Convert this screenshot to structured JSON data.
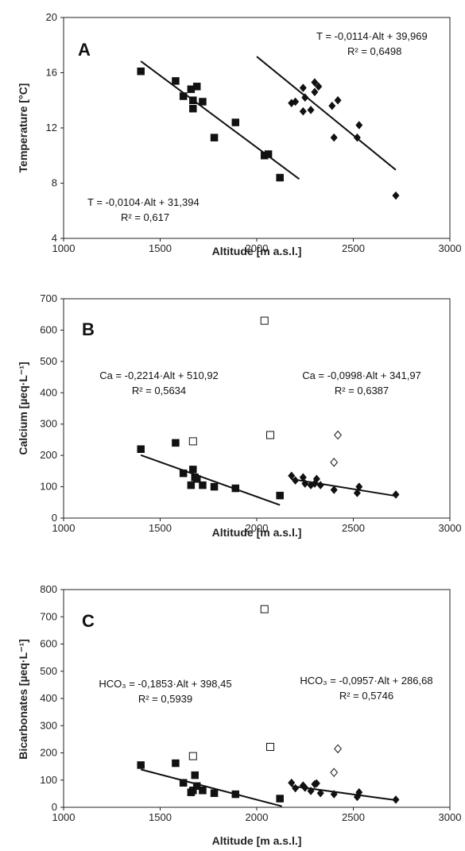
{
  "chart_data": [
    {
      "type": "scatter",
      "panel": "A",
      "xlabel": "Altitude [m a.s.l.]",
      "ylabel": "Temperature [°C]",
      "xlim": [
        1000,
        3000
      ],
      "ylim": [
        4,
        20
      ],
      "xticks": [
        1000,
        1500,
        2000,
        2500,
        3000
      ],
      "yticks": [
        4,
        8,
        12,
        16,
        20
      ],
      "grid": false,
      "series": [
        {
          "marker": "square",
          "x": [
            1400,
            1580,
            1620,
            1660,
            1670,
            1670,
            1690,
            1720,
            1780,
            1890,
            2040,
            2060,
            2120
          ],
          "y": [
            16.1,
            15.4,
            14.3,
            14.8,
            14.0,
            13.4,
            15.0,
            13.9,
            11.3,
            12.4,
            10.0,
            10.1,
            8.4
          ],
          "fit": {
            "x": [
              1400,
              2220
            ],
            "y": [
              16.83,
              8.3
            ]
          }
        },
        {
          "marker": "diamond",
          "x": [
            2180,
            2200,
            2240,
            2240,
            2250,
            2280,
            2300,
            2300,
            2320,
            2390,
            2400,
            2420,
            2520,
            2530,
            2720
          ],
          "y": [
            13.8,
            13.9,
            14.9,
            13.2,
            14.2,
            13.3,
            14.6,
            15.3,
            15.0,
            13.6,
            11.3,
            14.0,
            11.3,
            12.2,
            7.1
          ],
          "fit": {
            "x": [
              2000,
              2720
            ],
            "y": [
              17.17,
              8.96
            ]
          }
        }
      ],
      "annotations": [
        {
          "eq": "T = -0,0114·Alt + 39,969",
          "r2": "R² = 0,6498"
        },
        {
          "eq": "T = -0,0104·Alt + 31,394",
          "r2": "R² = 0,617"
        }
      ]
    },
    {
      "type": "scatter",
      "panel": "B",
      "xlabel": "Altitude [m a.s.l.]",
      "ylabel": "Calcium [µeq·L⁻¹]",
      "xlim": [
        1000,
        3000
      ],
      "ylim": [
        0,
        700
      ],
      "xticks": [
        1000,
        1500,
        2000,
        2500,
        3000
      ],
      "yticks": [
        0,
        100,
        200,
        300,
        400,
        500,
        600,
        700
      ],
      "grid": false,
      "series": [
        {
          "marker": "square",
          "x": [
            1400,
            1580,
            1620,
            1660,
            1670,
            1680,
            1690,
            1720,
            1780,
            1890,
            2120
          ],
          "y": [
            220,
            240,
            143,
            105,
            155,
            130,
            125,
            105,
            100,
            95,
            72
          ],
          "fit": {
            "x": [
              1400,
              2120
            ],
            "y": [
              200.96,
              41.55
            ]
          }
        },
        {
          "marker": "open-square",
          "x": [
            1670,
            2040,
            2070
          ],
          "y": [
            245,
            630,
            265
          ]
        },
        {
          "marker": "diamond",
          "x": [
            2180,
            2200,
            2240,
            2250,
            2280,
            2300,
            2310,
            2330,
            2400,
            2520,
            2530,
            2720
          ],
          "y": [
            135,
            120,
            130,
            110,
            105,
            110,
            125,
            105,
            90,
            80,
            100,
            75
          ],
          "fit": {
            "x": [
              2180,
              2720
            ],
            "y": [
              124.41,
              70.51
            ]
          }
        },
        {
          "marker": "open-diamond",
          "x": [
            2400,
            2420
          ],
          "y": [
            178,
            265
          ]
        }
      ],
      "annotations": [
        {
          "eq": "Ca = -0,2214·Alt + 510,92",
          "r2": "R² = 0,5634"
        },
        {
          "eq": "Ca = -0,0998·Alt + 341,97",
          "r2": "R² = 0,6387"
        }
      ]
    },
    {
      "type": "scatter",
      "panel": "C",
      "xlabel": "Altitude [m a.s.l.]",
      "ylabel": "Bicarbonates [µeq·L⁻¹]",
      "xlim": [
        1000,
        3000
      ],
      "ylim": [
        0,
        800
      ],
      "xticks": [
        1000,
        1500,
        2000,
        2500,
        3000
      ],
      "yticks": [
        0,
        100,
        200,
        300,
        400,
        500,
        600,
        700,
        800
      ],
      "grid": false,
      "series": [
        {
          "marker": "square",
          "x": [
            1400,
            1580,
            1620,
            1660,
            1670,
            1680,
            1690,
            1720,
            1780,
            1890,
            2120
          ],
          "y": [
            155,
            162,
            90,
            55,
            62,
            118,
            78,
            62,
            52,
            48,
            32
          ],
          "fit": {
            "x": [
              1400,
              2130
            ],
            "y": [
              139.03,
              3.76
            ]
          }
        },
        {
          "marker": "open-square",
          "x": [
            1670,
            2040,
            2070
          ],
          "y": [
            188,
            728,
            222
          ]
        },
        {
          "marker": "diamond",
          "x": [
            2180,
            2200,
            2240,
            2250,
            2280,
            2300,
            2310,
            2330,
            2400,
            2520,
            2530,
            2720
          ],
          "y": [
            90,
            70,
            80,
            72,
            60,
            85,
            88,
            52,
            48,
            38,
            55,
            28
          ],
          "fit": {
            "x": [
              2180,
              2720
            ],
            "y": [
              78.05,
              26.37
            ]
          }
        },
        {
          "marker": "open-diamond",
          "x": [
            2400,
            2420
          ],
          "y": [
            128,
            215
          ]
        }
      ],
      "annotations": [
        {
          "eq": "HCO₃ = -0,1853·Alt + 398,45",
          "r2": "R² = 0,5939"
        },
        {
          "eq": "HCO₃ = -0,0957·Alt + 286,68",
          "r2": "R² = 0,5746"
        }
      ]
    }
  ]
}
